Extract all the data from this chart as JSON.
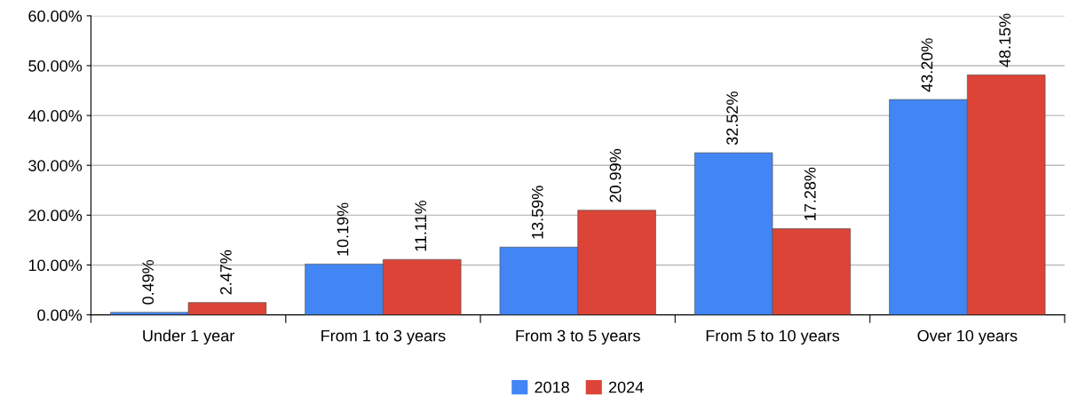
{
  "chart_data": {
    "type": "bar",
    "categories": [
      "Under 1 year",
      "From 1 to 3 years",
      "From 3 to 5 years",
      "From 5 to 10 years",
      "Over 10 years"
    ],
    "series": [
      {
        "name": "2018",
        "color": "#4285f4",
        "values": [
          0.49,
          10.19,
          13.59,
          32.52,
          43.2
        ],
        "value_labels": [
          "0.49%",
          "10.19%",
          "13.59%",
          "32.52%",
          "43.20%"
        ]
      },
      {
        "name": "2024",
        "color": "#db4437",
        "values": [
          2.47,
          11.11,
          20.99,
          17.28,
          48.15
        ],
        "value_labels": [
          "2.47%",
          "11.11%",
          "20.99%",
          "17.28%",
          "48.15%"
        ]
      }
    ],
    "ylim": [
      0,
      60
    ],
    "yticks": [
      {
        "value": 0,
        "label": "0.00%"
      },
      {
        "value": 10,
        "label": "10.00%"
      },
      {
        "value": 20,
        "label": "20.00%"
      },
      {
        "value": 30,
        "label": "30.00%"
      },
      {
        "value": 40,
        "label": "40.00%"
      },
      {
        "value": 50,
        "label": "50.00%"
      },
      {
        "value": 60,
        "label": "60.00%"
      }
    ],
    "grid": "y",
    "legend": "bottom"
  }
}
